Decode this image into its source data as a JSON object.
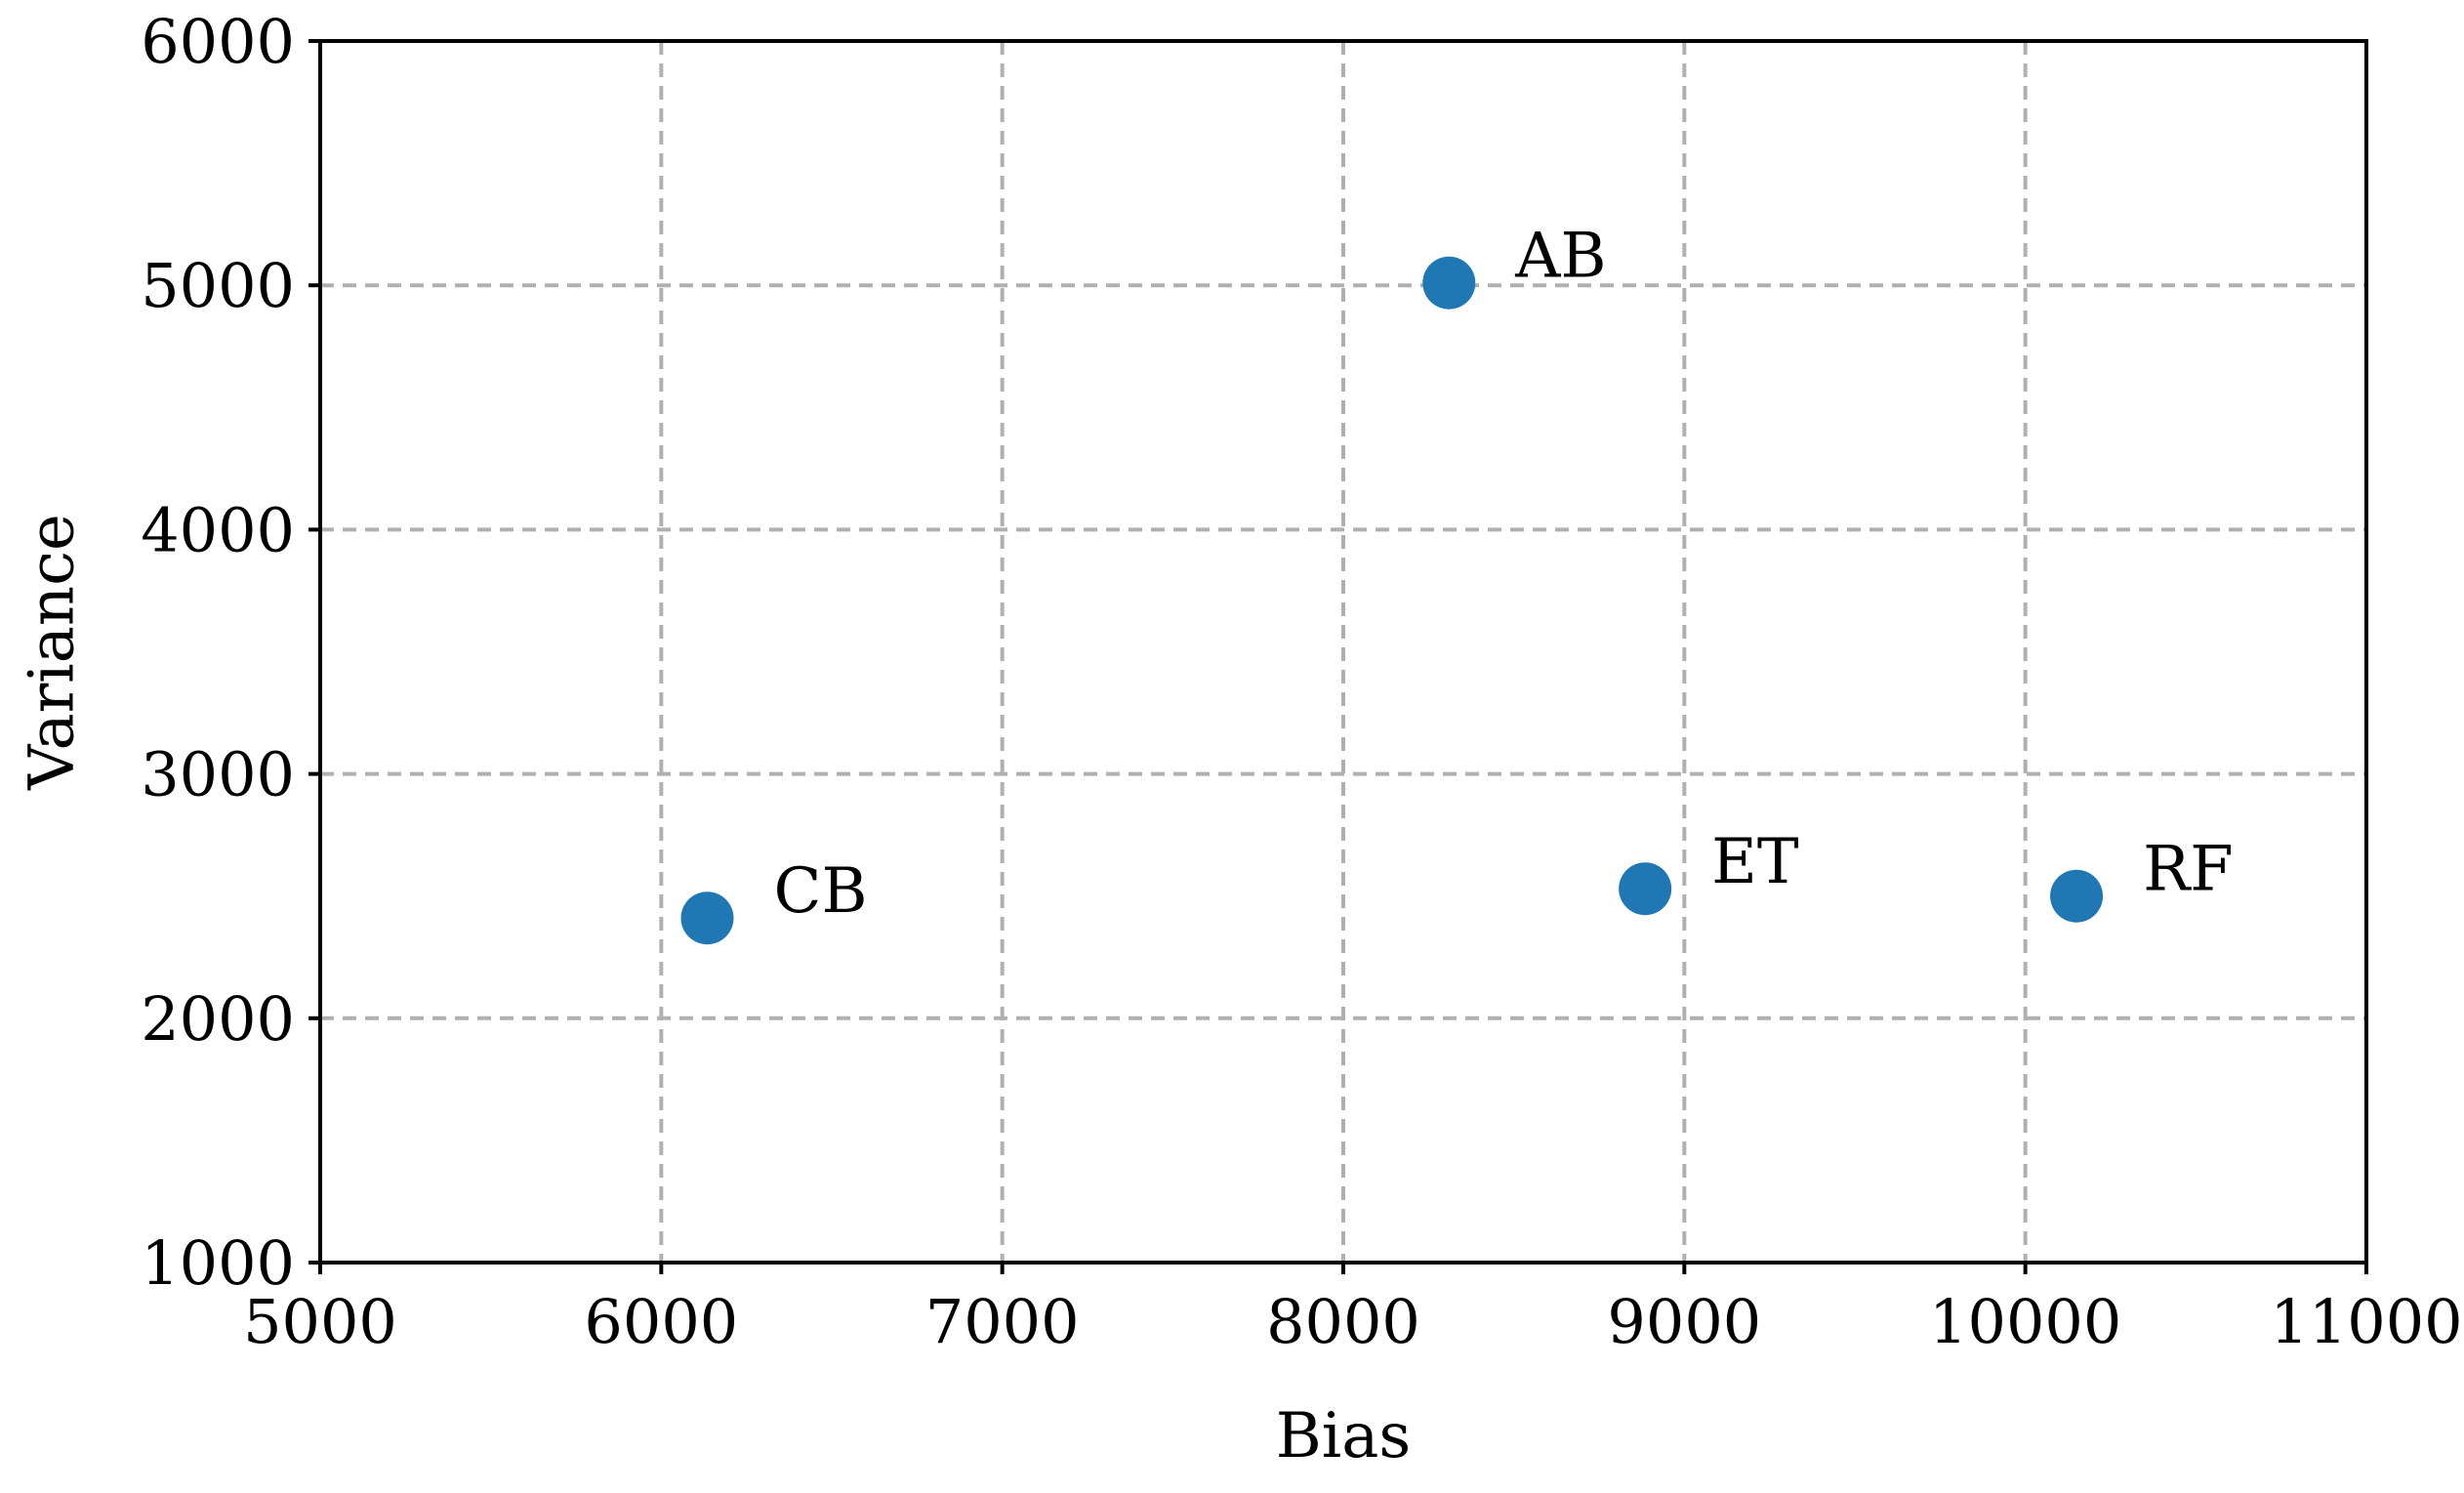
{
  "chart_data": {
    "type": "scatter",
    "title": "",
    "xlabel": "Bias",
    "ylabel": "Variance",
    "xlim": [
      5000,
      11000
    ],
    "ylim": [
      1000,
      6000
    ],
    "xticks": [
      5000,
      6000,
      7000,
      8000,
      9000,
      10000,
      11000
    ],
    "yticks": [
      1000,
      2000,
      3000,
      4000,
      5000,
      6000
    ],
    "grid": true,
    "color": "#1f77b4",
    "points": [
      {
        "label": "AB",
        "x": 8310,
        "y": 5010
      },
      {
        "label": "CB",
        "x": 6135,
        "y": 2410
      },
      {
        "label": "ET",
        "x": 8885,
        "y": 2530
      },
      {
        "label": "RF",
        "x": 10150,
        "y": 2500
      }
    ]
  }
}
